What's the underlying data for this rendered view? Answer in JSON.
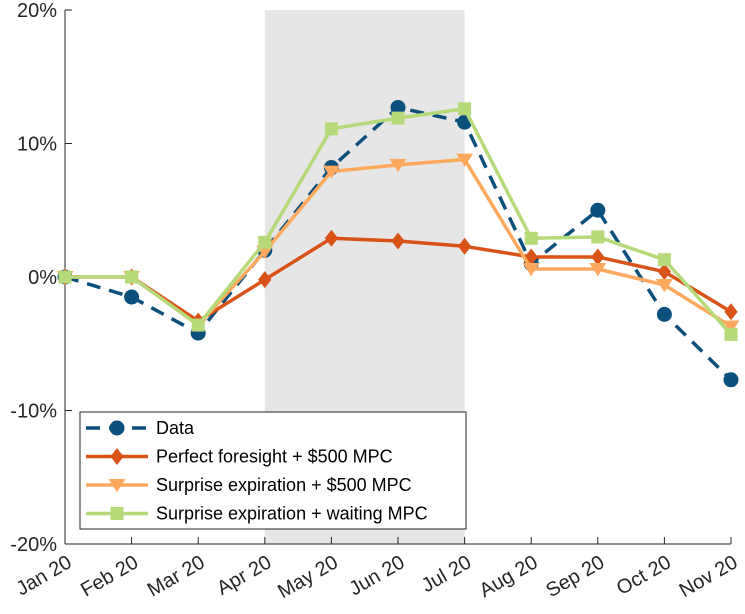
{
  "chart_data": {
    "type": "line",
    "title": "",
    "xlabel": "",
    "ylabel": "",
    "categories": [
      "Jan 20",
      "Feb 20",
      "Mar 20",
      "Apr 20",
      "May 20",
      "Jun 20",
      "Jul 20",
      "Aug 20",
      "Sep 20",
      "Oct 20",
      "Nov 20"
    ],
    "ylim": [
      -20,
      20
    ],
    "yticks": [
      -20,
      -10,
      0,
      10,
      20
    ],
    "ytick_labels": [
      "-20%",
      "-10%",
      "0%",
      "10%",
      "20%"
    ],
    "shaded_region": {
      "from": "Apr 20",
      "to": "Jul 20",
      "color": "#e6e6e6"
    },
    "grid": false,
    "legend_position": "bottom-left",
    "series": [
      {
        "name": "Data",
        "color": "#0b4f7c",
        "line_style": "dashed",
        "marker": "circle",
        "values": [
          0.0,
          -1.5,
          -4.2,
          2.0,
          8.2,
          12.7,
          11.6,
          1.0,
          5.0,
          -2.8,
          -7.7
        ]
      },
      {
        "name": "Perfect foresight + $500 MPC",
        "color": "#d95319",
        "line_style": "solid",
        "marker": "diamond",
        "values": [
          0.0,
          0.0,
          -3.3,
          -0.2,
          2.9,
          2.7,
          2.3,
          1.5,
          1.5,
          0.4,
          -2.6
        ]
      },
      {
        "name": "Surprise expiration + $500 MPC",
        "color": "#ffa95e",
        "line_style": "solid",
        "marker": "triangle-down",
        "values": [
          0.0,
          0.0,
          -3.6,
          1.9,
          7.9,
          8.4,
          8.8,
          0.6,
          0.6,
          -0.6,
          -3.7
        ]
      },
      {
        "name": "Surprise expiration + waiting MPC",
        "color": "#b6d97a",
        "line_style": "solid",
        "marker": "square",
        "values": [
          0.0,
          0.0,
          -3.6,
          2.6,
          11.1,
          11.9,
          12.6,
          2.9,
          3.0,
          1.3,
          -4.3
        ]
      }
    ]
  }
}
